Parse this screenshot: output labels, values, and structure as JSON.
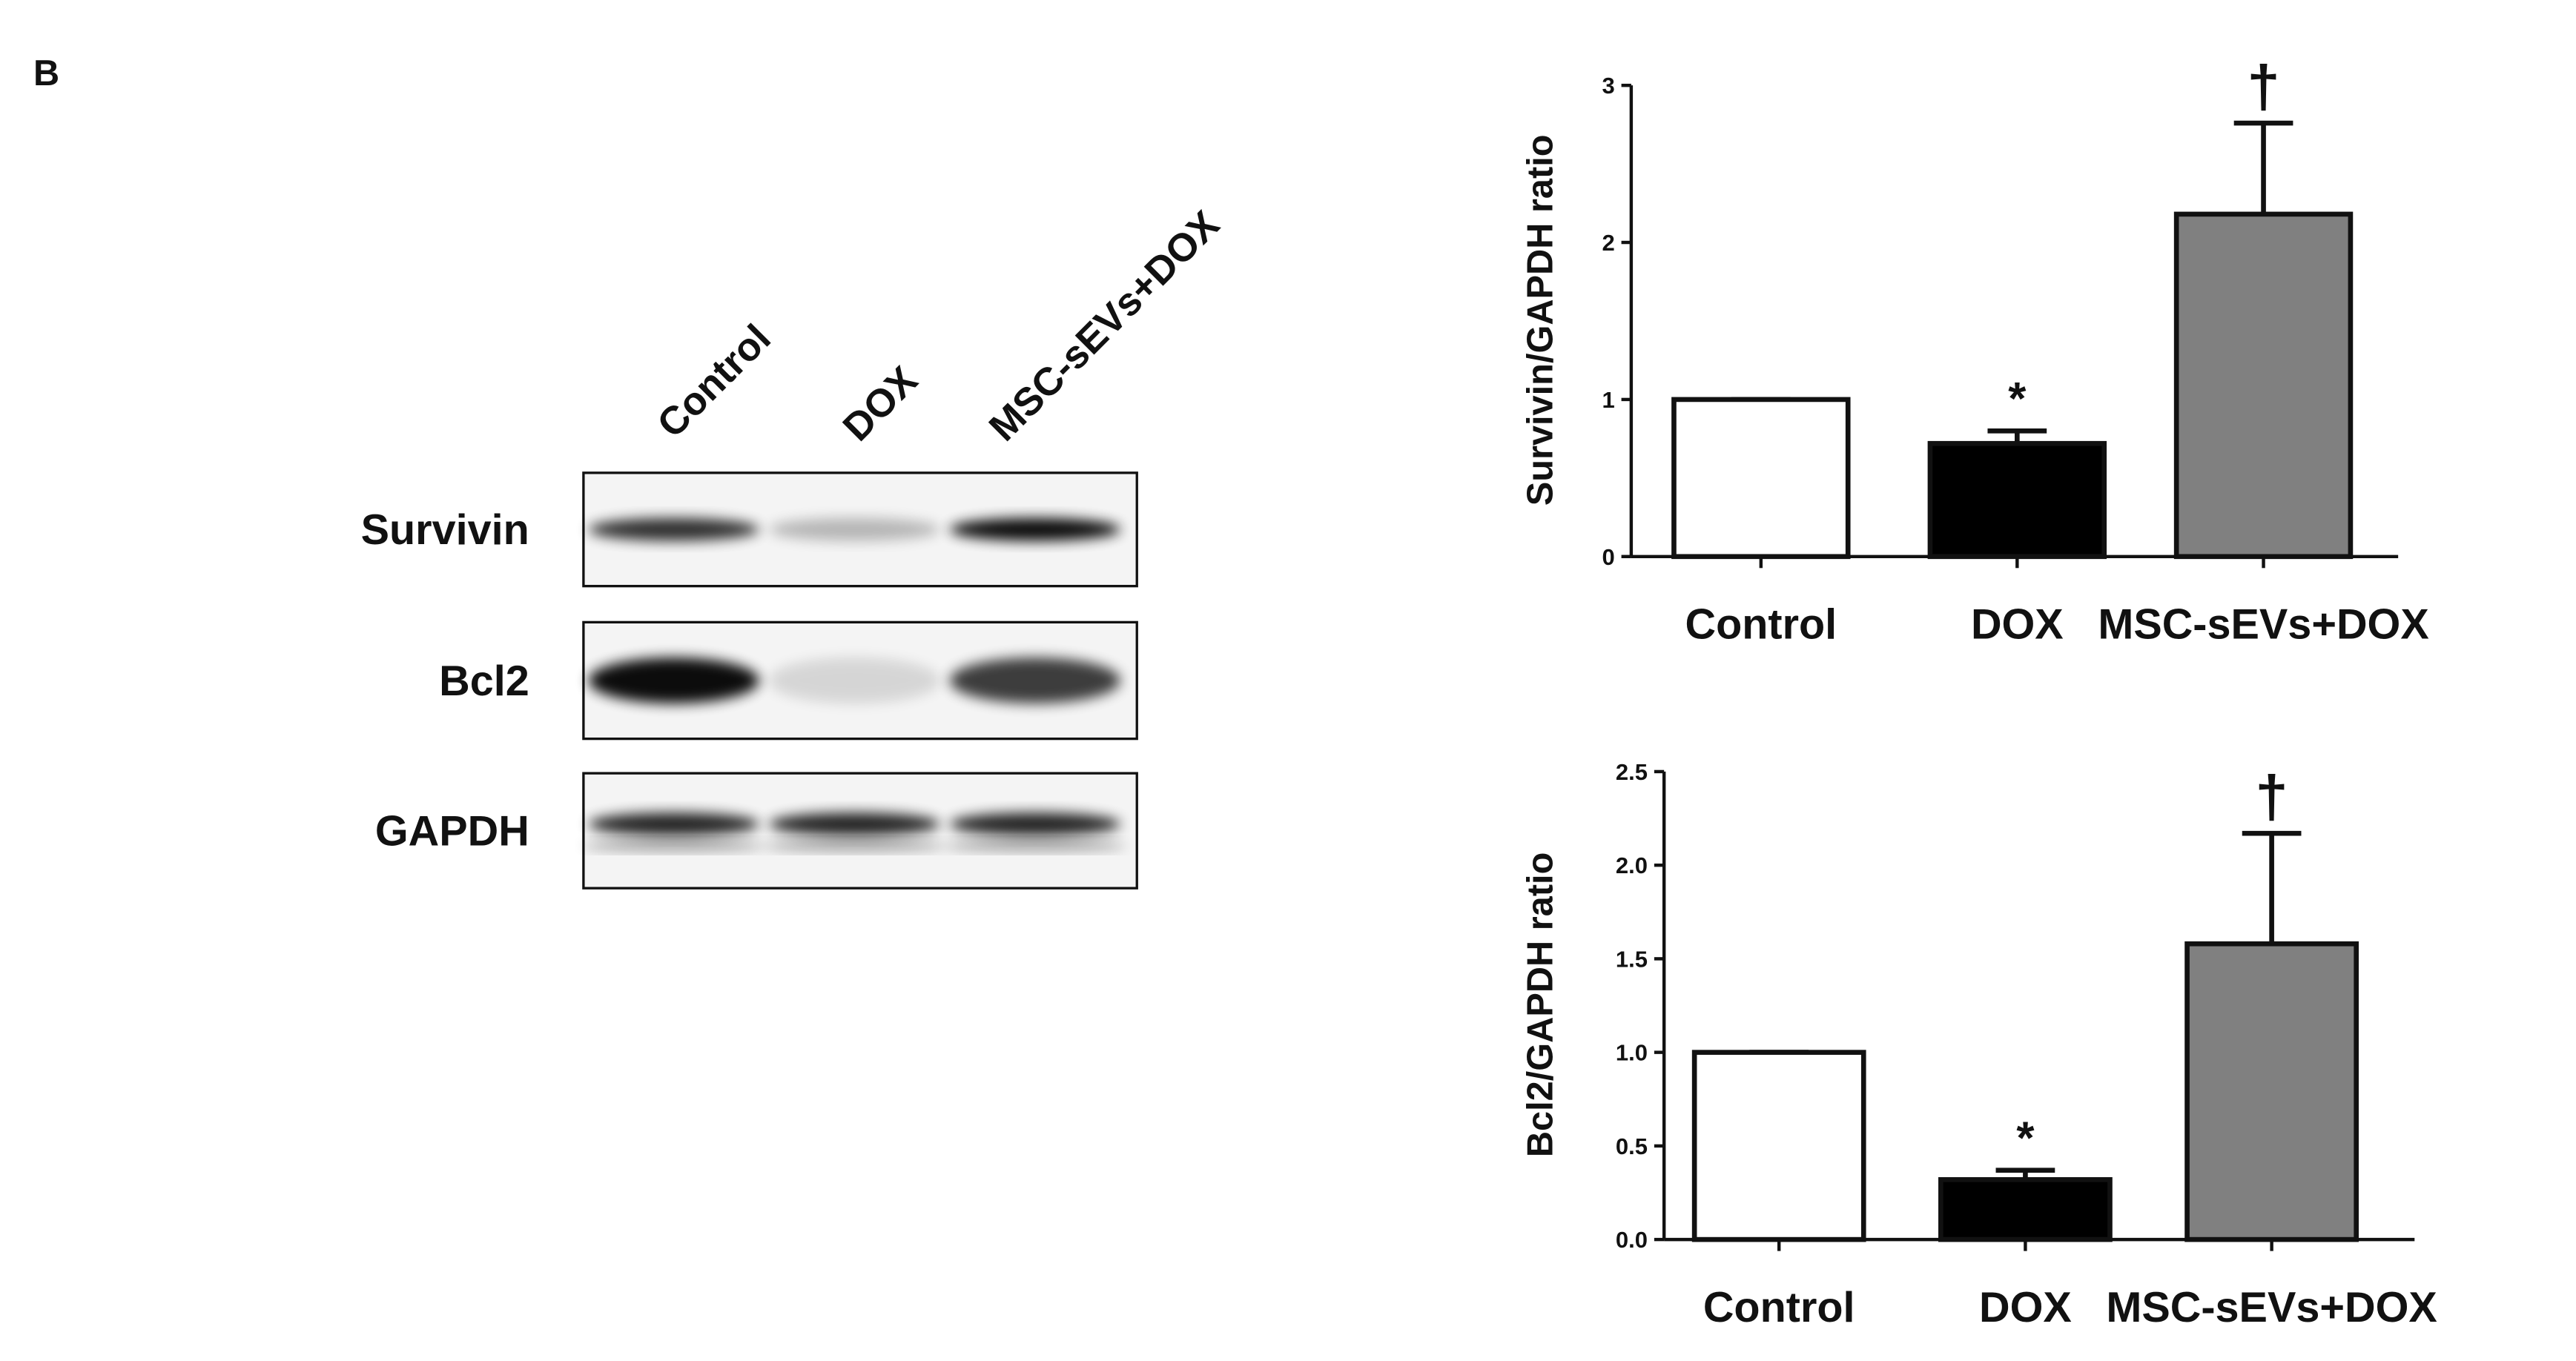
{
  "panel_label": "B",
  "blot": {
    "lanes": [
      "Control",
      "DOX",
      "MSC-sEVs+DOX"
    ],
    "rows": [
      "Survivin",
      "Bcl2",
      "GAPDH"
    ]
  },
  "chart_data": [
    {
      "type": "bar",
      "ylabel": "Survivin/GAPDH  ratio",
      "categories": [
        "Control",
        "DOX",
        "MSC-sEVs+DOX"
      ],
      "values": [
        1,
        0.72,
        2.18
      ],
      "errors": [
        0,
        0.08,
        0.58
      ],
      "colors": [
        "#ffffff",
        "#000000",
        "#808080"
      ],
      "annotations": [
        null,
        "*",
        "†"
      ],
      "ylim": [
        0,
        3
      ],
      "yticks": [
        0,
        1,
        2,
        3
      ]
    },
    {
      "type": "bar",
      "ylabel": "Bcl2/GAPDH  ratio",
      "categories": [
        "Control",
        "DOX",
        "MSC-sEVs+DOX"
      ],
      "values": [
        1.0,
        0.32,
        1.58
      ],
      "errors": [
        0,
        0.05,
        0.59
      ],
      "colors": [
        "#ffffff",
        "#000000",
        "#808080"
      ],
      "annotations": [
        null,
        "*",
        "†"
      ],
      "ylim": [
        0,
        2.5
      ],
      "yticks": [
        {
          "value": 0,
          "label": "0.0"
        },
        0.5,
        {
          "value": 1,
          "label": "1.0"
        },
        1.5,
        {
          "value": 2,
          "label": "2.0"
        },
        2.5
      ]
    }
  ]
}
